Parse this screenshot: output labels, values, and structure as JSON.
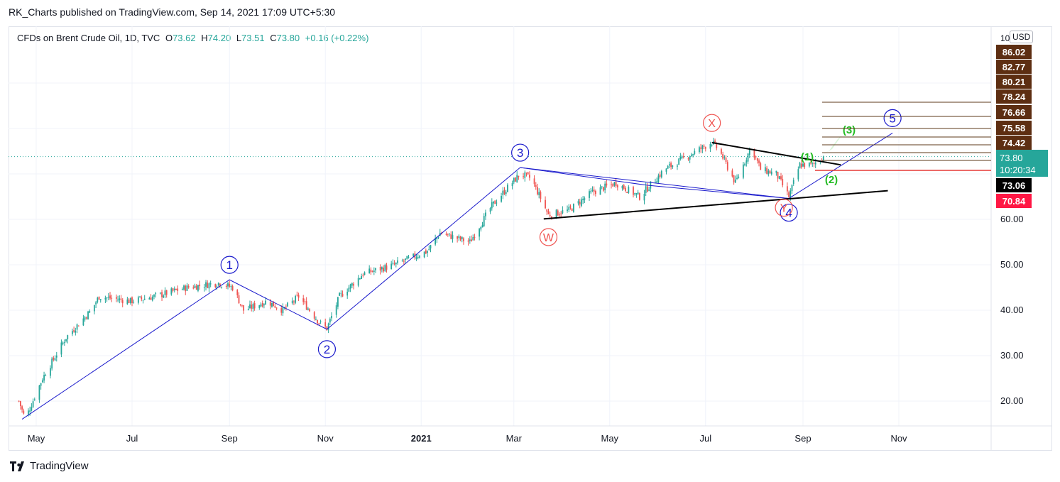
{
  "header": {
    "published_text": "RK_Charts published on TradingView.com, Sep 14, 2021 17:09 UTC+5:30"
  },
  "legend": {
    "symbol": "CFDs on Brent Crude Oil, 1D, TVC",
    "open_label": "O",
    "open": "73.62",
    "high_label": "H",
    "high": "74.20",
    "low_label": "L",
    "low": "73.51",
    "close_label": "C",
    "close": "73.80",
    "change": "+0.16 (+0.22%)"
  },
  "currency": "USD",
  "footer": {
    "brand": "TradingView"
  },
  "colors": {
    "up": "#26a69a",
    "down": "#ef5350",
    "wave": "#1a1acc",
    "trend": "#000000",
    "wxy": "#ef5350",
    "sub_wave": "#22bb22",
    "fib_line": "#5d3a1a",
    "fib_tag": "#5d2e12"
  },
  "chart_data": {
    "type": "candlestick",
    "y_axis": {
      "scale": "linear",
      "range": [
        15,
        100
      ],
      "ticks": [
        "20.00",
        "30.00",
        "40.00",
        "50.00",
        "60.00"
      ]
    },
    "x_axis": {
      "ticks": [
        "May",
        "Jul",
        "Sep",
        "Nov",
        "2021",
        "Mar",
        "May",
        "Jul",
        "Sep",
        "Nov"
      ]
    },
    "price_path": [
      [
        "2020-04-20",
        20
      ],
      [
        "2020-04-24",
        16
      ],
      [
        "2020-05-05",
        25
      ],
      [
        "2020-05-20",
        34
      ],
      [
        "2020-06-05",
        40
      ],
      [
        "2020-06-10",
        43
      ],
      [
        "2020-06-30",
        42
      ],
      [
        "2020-07-15",
        43
      ],
      [
        "2020-08-05",
        45
      ],
      [
        "2020-08-25",
        46
      ],
      [
        "2020-09-03",
        45
      ],
      [
        "2020-09-10",
        40
      ],
      [
        "2020-09-25",
        42
      ],
      [
        "2020-10-05",
        40
      ],
      [
        "2020-10-15",
        43
      ],
      [
        "2020-10-29",
        37
      ],
      [
        "2020-11-02",
        36
      ],
      [
        "2020-11-10",
        43
      ],
      [
        "2020-11-25",
        48
      ],
      [
        "2020-12-15",
        50
      ],
      [
        "2021-01-05",
        53
      ],
      [
        "2021-01-13",
        57
      ],
      [
        "2021-02-01",
        55
      ],
      [
        "2021-02-15",
        63
      ],
      [
        "2021-02-25",
        67
      ],
      [
        "2021-03-05",
        70
      ],
      [
        "2021-03-12",
        69
      ],
      [
        "2021-03-23",
        61
      ],
      [
        "2021-04-05",
        62
      ],
      [
        "2021-04-20",
        66
      ],
      [
        "2021-05-05",
        68
      ],
      [
        "2021-05-20",
        65
      ],
      [
        "2021-06-05",
        71
      ],
      [
        "2021-06-20",
        74
      ],
      [
        "2021-07-05",
        77
      ],
      [
        "2021-07-10",
        75
      ],
      [
        "2021-07-20",
        68
      ],
      [
        "2021-07-30",
        76
      ],
      [
        "2021-08-05",
        71
      ],
      [
        "2021-08-15",
        70
      ],
      [
        "2021-08-23",
        65
      ],
      [
        "2021-08-30",
        72
      ],
      [
        "2021-09-07",
        72
      ],
      [
        "2021-09-14",
        73.8
      ]
    ],
    "main_waves": [
      {
        "label": "1",
        "date": "2020-09-01",
        "price": 46.7
      },
      {
        "label": "2",
        "date": "2020-11-02",
        "price": 35.8
      },
      {
        "label": "3",
        "date": "2021-03-05",
        "price": 71.4
      },
      {
        "label": "4",
        "date": "2021-08-23",
        "price": 64.6
      },
      {
        "label": "5",
        "date": "2021-10-28",
        "price": 79.0
      }
    ],
    "wave_start": {
      "date": "2020-04-22",
      "price": 16.0
    },
    "wxy_labels": [
      {
        "label": "W",
        "date": "2021-03-23",
        "price": 60.0
      },
      {
        "label": "X",
        "date": "2021-07-05",
        "price": 77.0
      },
      {
        "label": "Y",
        "date": "2021-08-23",
        "price": 64.6
      }
    ],
    "sub_waves": [
      "(1)",
      "(2)",
      "(3)"
    ],
    "fib_levels": [
      "86.02",
      "82.77",
      "80.21",
      "78.24",
      "76.66",
      "75.58",
      "74.42"
    ],
    "price_tags": [
      {
        "value": "73.80",
        "sub": "10:20:34",
        "kind": "last"
      },
      {
        "value": "73.06",
        "kind": "black"
      },
      {
        "value": "70.84",
        "kind": "red"
      }
    ]
  }
}
